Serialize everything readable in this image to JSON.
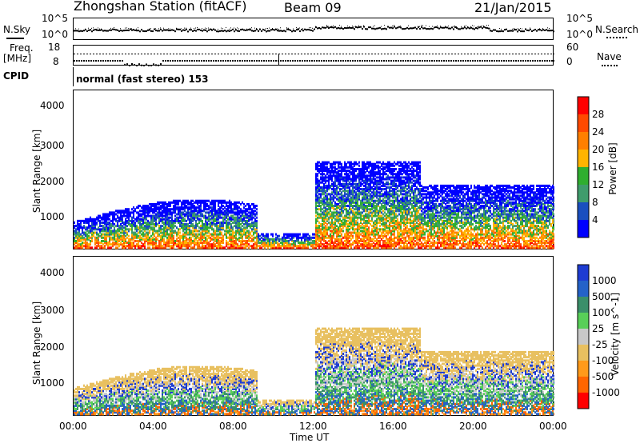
{
  "header": {
    "station": "Zhongshan Station (fitACF)",
    "beam": "Beam 09",
    "date": "21/Jan/2015"
  },
  "top_panels": {
    "nsky_label": "N.Sky",
    "nsky_ticks": [
      "10^5",
      "10^0"
    ],
    "nsearch_label": "N.Search",
    "nsearch_ticks": [
      "10^5",
      "10^0"
    ],
    "freq_label": "Freq.",
    "freq_unit": "[MHz]",
    "freq_ticks": [
      "18",
      "8"
    ],
    "nave_label": "Nave",
    "nave_ticks": [
      "60",
      "0"
    ],
    "cpid_label": "CPID",
    "cpid_text": "normal (fast stereo) 153"
  },
  "chart_data": [
    {
      "type": "heatmap",
      "name": "power",
      "ylabel": "Slant Range [km]",
      "y_ticks": [
        "4000",
        "3000",
        "2000",
        "1000"
      ],
      "ylim": [
        200,
        4500
      ],
      "colorbar_label": "Power [dB]",
      "colorbar_ticks": [
        "28",
        "24",
        "20",
        "16",
        "12",
        "8",
        "4"
      ],
      "colorbar_colors": [
        "#ff0000",
        "#ff4a00",
        "#ff7f00",
        "#ffb400",
        "#2fae2f",
        "#3f9c6c",
        "#1a4fbf",
        "#0000ff"
      ]
    },
    {
      "type": "heatmap",
      "name": "velocity",
      "ylabel": "Slant Range [km]",
      "y_ticks": [
        "4000",
        "3000",
        "2000",
        "1000"
      ],
      "ylim": [
        200,
        4500
      ],
      "colorbar_label": "Velocity [m s^-1]",
      "colorbar_ticks": [
        "1000",
        "500",
        "100",
        "25",
        "-25",
        "-100",
        "-500",
        "-1000"
      ],
      "colorbar_colors": [
        "#1e3cd2",
        "#2462c8",
        "#3a8f6a",
        "#58cf58",
        "#c8c8c8",
        "#e8c060",
        "#ff9a1a",
        "#ff6600",
        "#ff0000"
      ]
    }
  ],
  "x_axis": {
    "ticks": [
      "00:00",
      "04:00",
      "08:00",
      "12:00",
      "16:00",
      "20:00",
      "00:00"
    ],
    "label": "Time UT"
  }
}
